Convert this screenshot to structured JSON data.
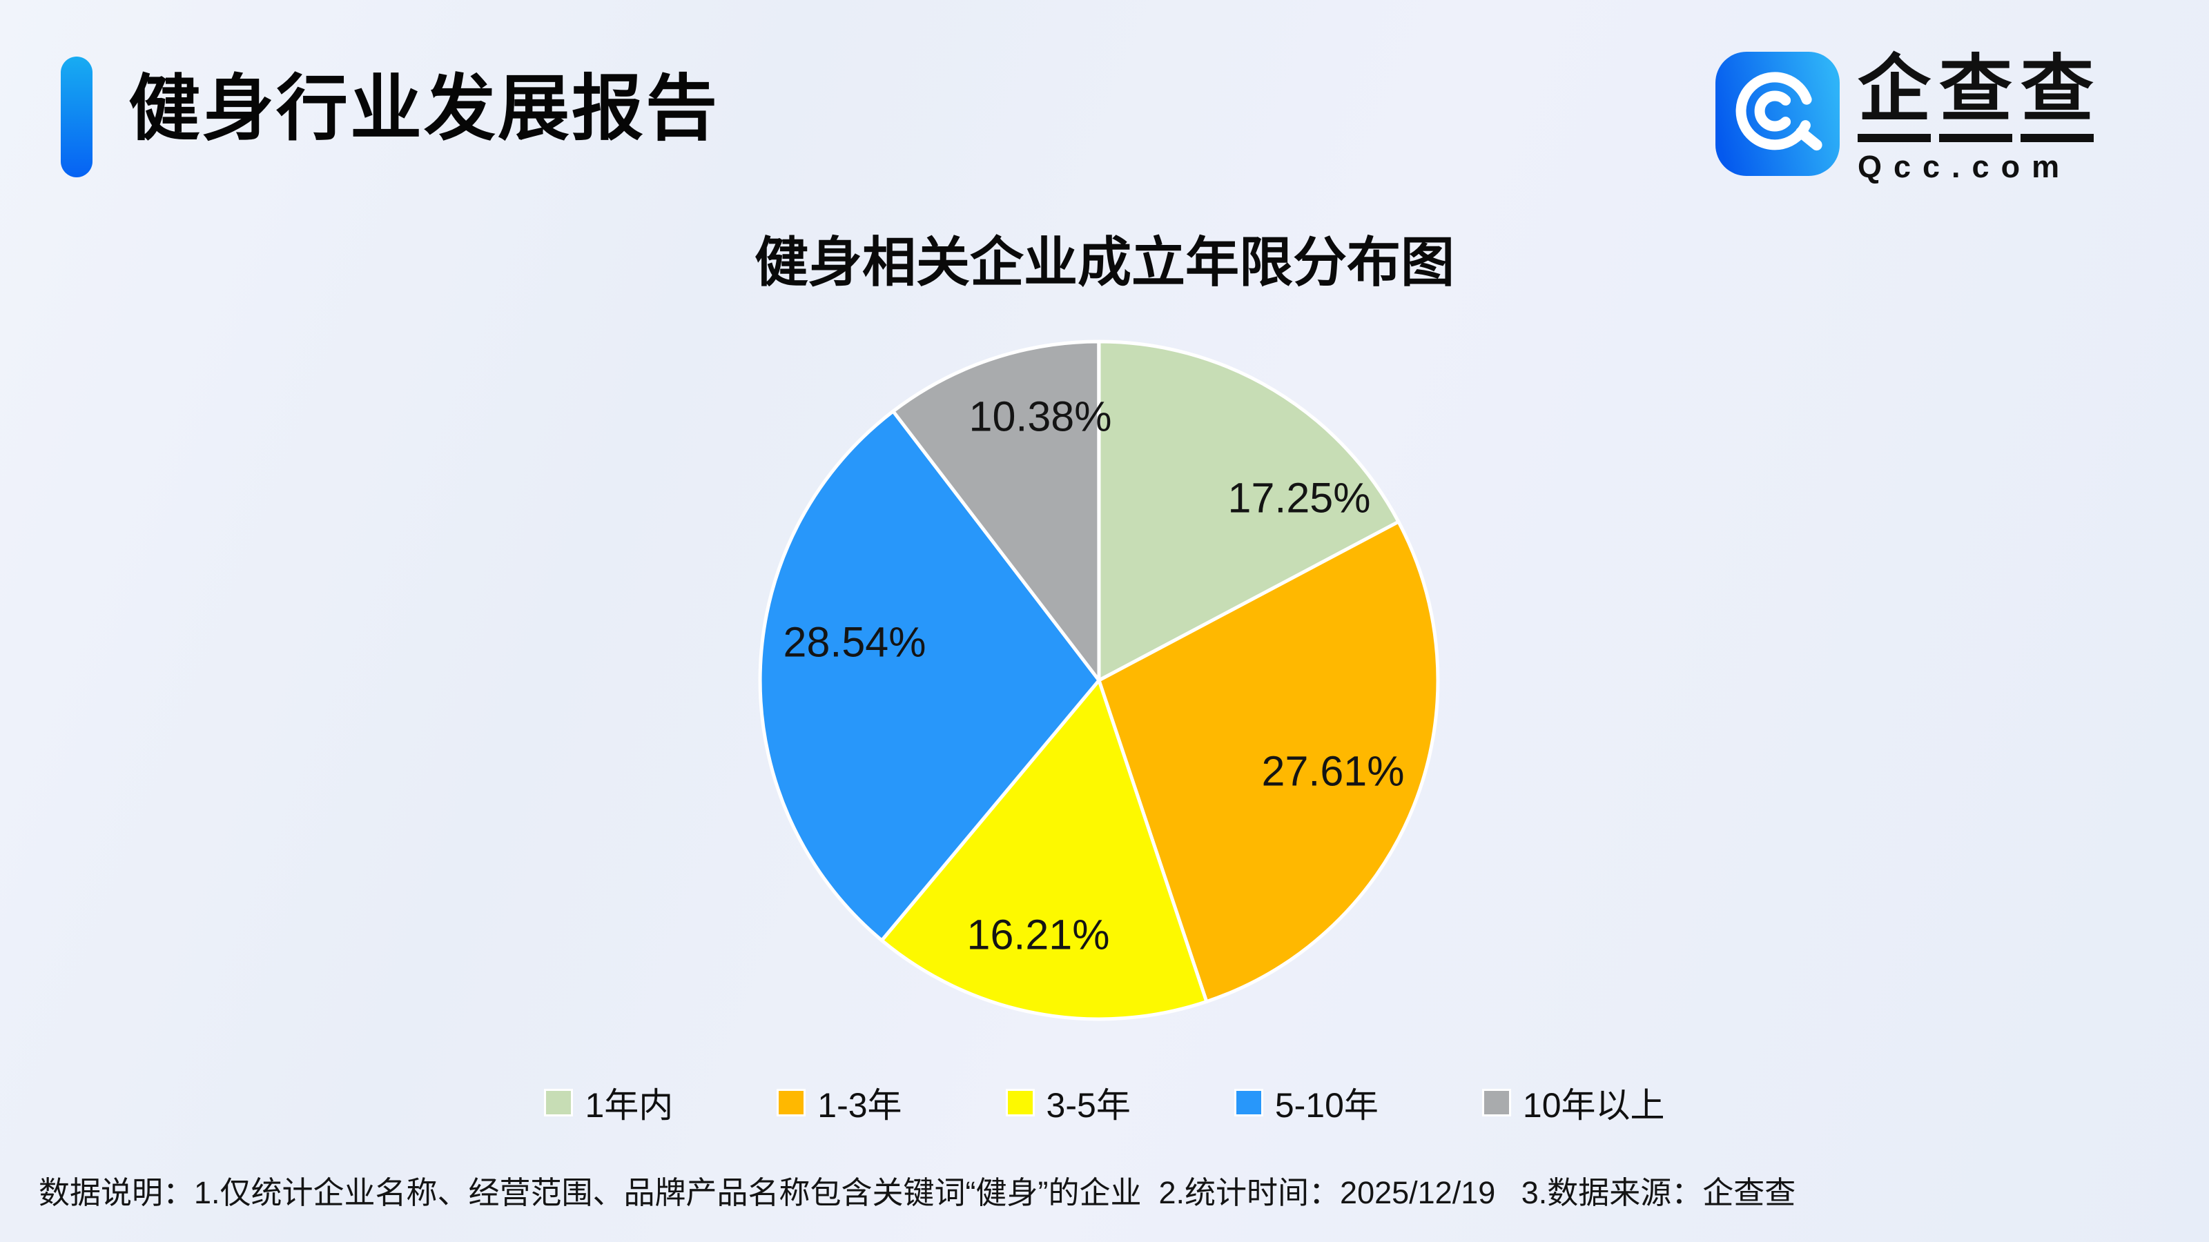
{
  "page": {
    "title": "健身行业发展报告",
    "background_color": "#e9eef9"
  },
  "logo": {
    "icon": "qcc-magnifier-icon",
    "icon_gradient": [
      "#0459ee",
      "#2fb4f8"
    ],
    "chars": [
      "企",
      "查",
      "查"
    ],
    "domain": "Qcc.com"
  },
  "chart_data": {
    "type": "pie",
    "title": "健身相关企业成立年限分布图",
    "categories": [
      "1年内",
      "1-3年",
      "3-5年",
      "5-10年",
      "10年以上"
    ],
    "values": [
      17.25,
      27.61,
      16.21,
      28.54,
      10.38
    ],
    "labels": [
      "17.25%",
      "27.61%",
      "16.21%",
      "28.54%",
      "10.38%"
    ],
    "colors": [
      "#c7ddb5",
      "#ffb800",
      "#fdf900",
      "#2897fa",
      "#a9abad"
    ],
    "unit": "%",
    "start_angle_deg": 0,
    "direction": "clockwise",
    "slice_border_color": "#ffffff",
    "label_color": "#141414",
    "legend_position": "bottom"
  },
  "footnote": "数据说明：1.仅统计企业名称、经营范围、品牌产品名称包含关键词“健身”的企业  2.统计时间：2025/12/19   3.数据来源：企查查"
}
